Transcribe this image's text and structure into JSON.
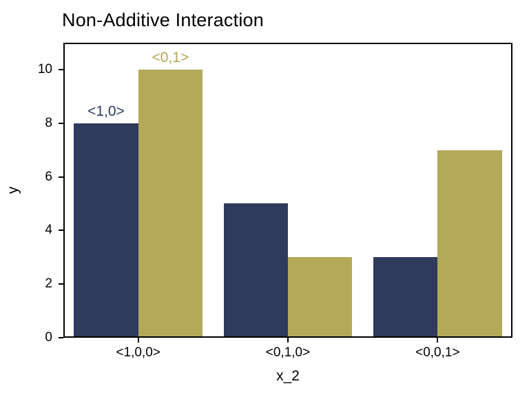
{
  "title": "Non-Additive Interaction",
  "chart_data": {
    "type": "bar",
    "categories": [
      "<1,0,0>",
      "<0,1,0>",
      "<0,0,1>"
    ],
    "series": [
      {
        "name": "<1,0>",
        "color": "#2f3b5c",
        "values": [
          8,
          5,
          3
        ]
      },
      {
        "name": "<0,1>",
        "color": "#b3a959",
        "values": [
          10,
          3,
          7
        ]
      }
    ],
    "annotations": [
      {
        "text": "<1,0>",
        "group": 0,
        "series": 0,
        "color": "#2f3b5c"
      },
      {
        "text": "<0,1>",
        "group": 0,
        "series": 1,
        "color": "#b3a959"
      }
    ],
    "title": "Non-Additive Interaction",
    "xlabel": "x_2",
    "ylabel": "y",
    "ylim": [
      0,
      11
    ],
    "yticks": [
      0,
      2,
      4,
      6,
      8,
      10
    ],
    "grid": false,
    "legend_position": "none",
    "frame_color": "#000000",
    "background_color": "#ffffff"
  }
}
